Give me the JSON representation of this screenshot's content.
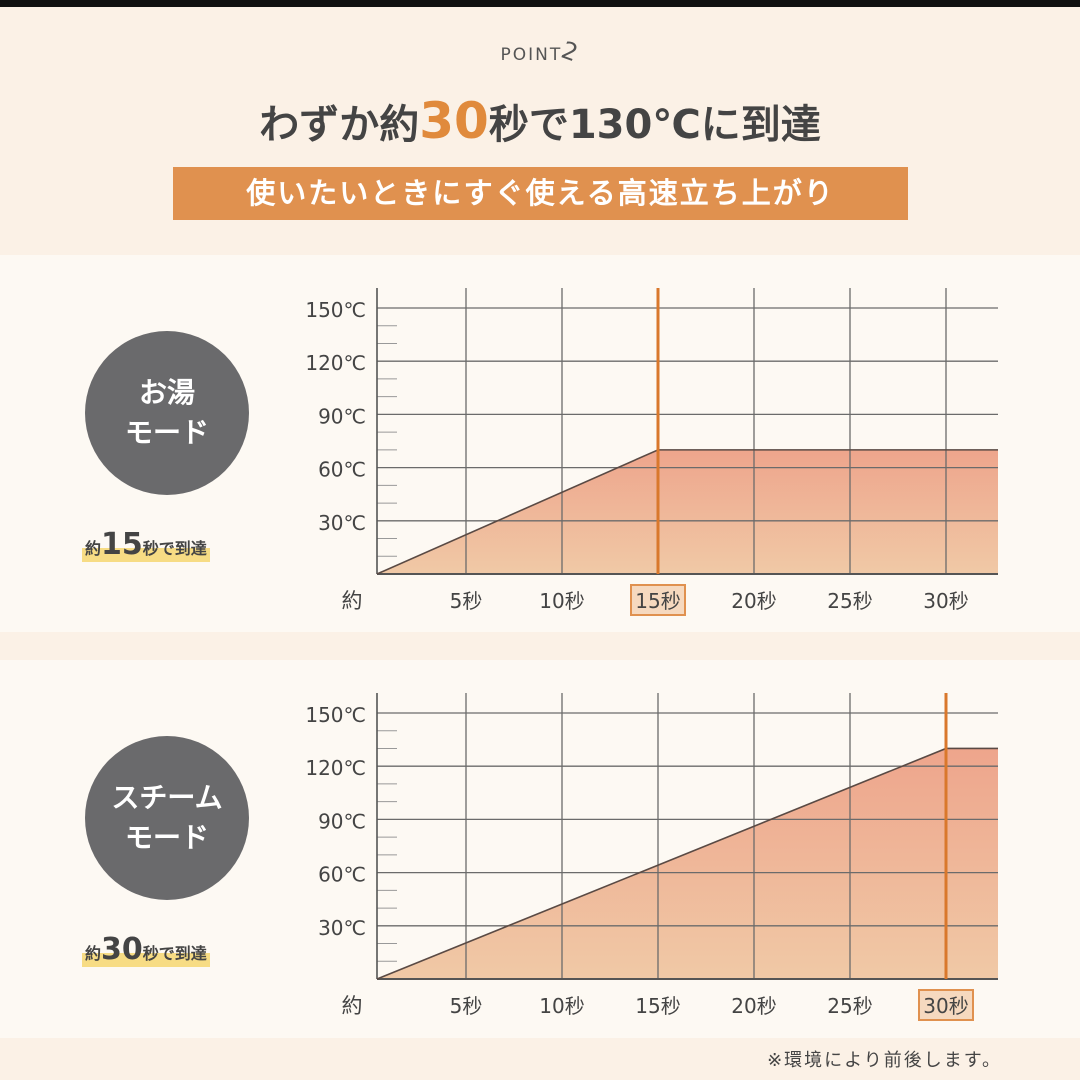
{
  "header": {
    "point_label": "POINT",
    "point_number": "2",
    "title_pre": "わずか約",
    "title_highlight": "30",
    "title_post": "秒で130℃に到達",
    "subtitle": "使いたいときにすぐ使える高速立ち上がり"
  },
  "colors": {
    "accent": "#e0914f",
    "line": "#d9782c",
    "fill_top": "#eea58c",
    "fill_bottom": "#f0c9a6",
    "circle": "#6a6a6c"
  },
  "chart_data": [
    {
      "type": "area",
      "title": "お湯モード",
      "mode_line1": "お湯",
      "mode_line2": "モード",
      "caption_pre": "約",
      "caption_num": "15",
      "caption_post": "秒で到達",
      "x": [
        0,
        15,
        33
      ],
      "y": [
        0,
        70,
        70
      ],
      "marker_x": 15,
      "highlight_tick": "15秒",
      "xlabel": "約",
      "xticks": [
        "5秒",
        "10秒",
        "15秒",
        "20秒",
        "25秒",
        "30秒"
      ],
      "xtick_values": [
        5,
        10,
        15,
        20,
        25,
        30
      ],
      "yticks": [
        "30℃",
        "60℃",
        "90℃",
        "120℃",
        "150℃"
      ],
      "ytick_values": [
        30,
        60,
        90,
        120,
        150
      ],
      "xlim": [
        0,
        33
      ],
      "ylim": [
        0,
        150
      ],
      "grid": true
    },
    {
      "type": "area",
      "title": "スチームモード",
      "mode_line1": "スチーム",
      "mode_line2": "モード",
      "caption_pre": "約",
      "caption_num": "30",
      "caption_post": "秒で到達",
      "x": [
        0,
        30,
        33
      ],
      "y": [
        0,
        130,
        130
      ],
      "marker_x": 30,
      "highlight_tick": "30秒",
      "xlabel": "約",
      "xticks": [
        "5秒",
        "10秒",
        "15秒",
        "20秒",
        "25秒",
        "30秒"
      ],
      "xtick_values": [
        5,
        10,
        15,
        20,
        25,
        30
      ],
      "yticks": [
        "30℃",
        "60℃",
        "90℃",
        "120℃",
        "150℃"
      ],
      "ytick_values": [
        30,
        60,
        90,
        120,
        150
      ],
      "xlim": [
        0,
        33
      ],
      "ylim": [
        0,
        150
      ],
      "grid": true
    }
  ],
  "footer": {
    "note": "※環境により前後します。"
  }
}
